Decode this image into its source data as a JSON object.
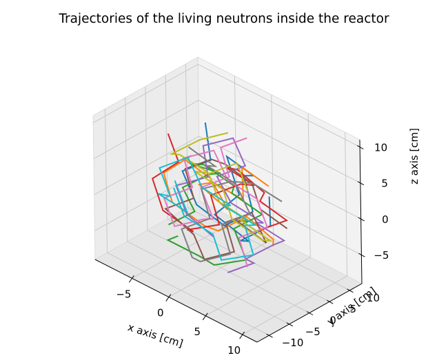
{
  "chart_data": {
    "type": "line",
    "projection": "3d",
    "title": "Trajectories of the living neutrons inside the reactor",
    "xlabel": "x axis [cm]",
    "ylabel": "y axis [cm]",
    "zlabel": "z axis [cm]",
    "xlim": [
      -10,
      12
    ],
    "ylim": [
      -13,
      13
    ],
    "zlim": [
      -9,
      11
    ],
    "xticks": [
      -5,
      0,
      5,
      10
    ],
    "yticks": [
      -10,
      -5,
      0,
      5,
      10
    ],
    "zticks": [
      -5,
      0,
      5,
      10
    ],
    "xtick_labels": [
      "−5",
      "0",
      "5",
      "10"
    ],
    "ytick_labels": [
      "−10",
      "−5",
      "0",
      "5",
      "10"
    ],
    "ztick_labels": [
      "−5",
      "0",
      "5",
      "10"
    ],
    "grid": true,
    "legend": "none",
    "pane_colors": [
      "#f2f2f2",
      "#ececec",
      "#e6e6e6"
    ],
    "series_colors": [
      "#1f77b4",
      "#ff7f0e",
      "#2ca02c",
      "#d62728",
      "#9467bd",
      "#8c564b",
      "#e377c2",
      "#7f7f7f",
      "#bcbd22",
      "#17becf"
    ],
    "series": [
      {
        "color": "#1f77b4",
        "points": [
          [
            -3.0,
            2.0,
            9.0
          ],
          [
            -1.5,
            0.5,
            5.0
          ],
          [
            -4.0,
            -2.0,
            3.0
          ],
          [
            -1.0,
            -4.0,
            0.5
          ],
          [
            1.5,
            -1.5,
            -2.0
          ],
          [
            -0.5,
            2.0,
            -4.0
          ],
          [
            2.5,
            3.5,
            -1.0
          ],
          [
            0.5,
            5.0,
            2.5
          ],
          [
            3.5,
            2.0,
            5.0
          ],
          [
            1.0,
            0.0,
            7.0
          ],
          [
            4.0,
            -2.5,
            4.0
          ],
          [
            2.0,
            -5.0,
            1.0
          ],
          [
            5.5,
            -3.0,
            -1.5
          ],
          [
            3.0,
            -0.5,
            -3.5
          ],
          [
            6.0,
            1.5,
            -0.5
          ],
          [
            4.5,
            4.0,
            2.0
          ]
        ]
      },
      {
        "color": "#ff7f0e",
        "points": [
          [
            5.0,
            3.0,
            4.0
          ],
          [
            2.5,
            1.0,
            6.0
          ],
          [
            4.0,
            -1.5,
            3.0
          ],
          [
            1.0,
            -3.5,
            4.5
          ],
          [
            -2.0,
            -1.5,
            2.0
          ],
          [
            0.5,
            1.0,
            -1.0
          ],
          [
            -3.0,
            3.0,
            1.0
          ],
          [
            -5.5,
            1.0,
            3.0
          ],
          [
            -3.0,
            -1.5,
            5.5
          ],
          [
            -6.0,
            -3.0,
            2.0
          ],
          [
            -3.5,
            -5.5,
            0.0
          ],
          [
            -0.5,
            -3.0,
            -2.5
          ],
          [
            2.5,
            -5.0,
            -1.0
          ],
          [
            5.0,
            -2.5,
            1.5
          ],
          [
            7.5,
            -0.5,
            -1.0
          ],
          [
            6.0,
            2.0,
            -3.5
          ]
        ]
      },
      {
        "color": "#2ca02c",
        "points": [
          [
            -6.0,
            -2.0,
            -5.5
          ],
          [
            -3.5,
            0.0,
            -3.0
          ],
          [
            -6.5,
            2.5,
            -2.0
          ],
          [
            -4.0,
            4.5,
            0.5
          ],
          [
            -1.0,
            2.0,
            3.0
          ],
          [
            -3.5,
            -1.0,
            4.0
          ],
          [
            -0.5,
            -3.0,
            6.0
          ],
          [
            2.5,
            -1.0,
            4.0
          ],
          [
            0.5,
            2.0,
            1.0
          ],
          [
            3.5,
            4.0,
            -1.0
          ],
          [
            1.0,
            1.5,
            -3.5
          ],
          [
            4.0,
            -1.0,
            -5.5
          ],
          [
            1.0,
            -3.5,
            -7.0
          ],
          [
            -2.0,
            -1.5,
            -8.0
          ],
          [
            -5.0,
            -4.0,
            -6.5
          ],
          [
            -2.5,
            -6.0,
            -4.0
          ]
        ]
      },
      {
        "color": "#d62728",
        "points": [
          [
            -7.0,
            0.0,
            6.0
          ],
          [
            -4.5,
            -2.0,
            4.0
          ],
          [
            -7.0,
            -4.0,
            1.0
          ],
          [
            -4.5,
            -6.0,
            -1.5
          ],
          [
            -1.5,
            -4.0,
            -3.5
          ],
          [
            -4.0,
            -1.0,
            -5.5
          ],
          [
            -1.0,
            1.5,
            -4.0
          ],
          [
            -3.5,
            4.0,
            -2.0
          ],
          [
            -0.5,
            6.0,
            0.5
          ],
          [
            2.5,
            4.0,
            2.5
          ],
          [
            0.0,
            1.5,
            4.5
          ],
          [
            3.0,
            -1.0,
            6.5
          ],
          [
            5.5,
            1.0,
            4.0
          ],
          [
            3.5,
            3.5,
            1.0
          ],
          [
            6.0,
            5.5,
            -1.0
          ],
          [
            3.5,
            3.5,
            -3.0
          ]
        ]
      },
      {
        "color": "#9467bd",
        "points": [
          [
            2.0,
            -2.0,
            -8.0
          ],
          [
            4.5,
            0.0,
            -6.0
          ],
          [
            2.0,
            2.5,
            -7.5
          ],
          [
            4.5,
            5.0,
            -5.0
          ],
          [
            7.0,
            3.0,
            -2.5
          ],
          [
            4.5,
            0.5,
            -0.5
          ],
          [
            7.0,
            -2.0,
            1.5
          ],
          [
            4.0,
            -4.5,
            3.5
          ],
          [
            1.0,
            -2.5,
            5.0
          ],
          [
            3.5,
            0.0,
            7.0
          ],
          [
            0.5,
            2.5,
            8.5
          ],
          [
            -2.5,
            0.5,
            6.5
          ],
          [
            -0.5,
            -2.0,
            4.0
          ],
          [
            -3.5,
            -4.5,
            2.0
          ],
          [
            -1.0,
            -6.5,
            0.0
          ],
          [
            1.5,
            -4.5,
            -2.5
          ]
        ]
      },
      {
        "color": "#8c564b",
        "points": [
          [
            8.0,
            2.0,
            0.0
          ],
          [
            5.5,
            0.0,
            2.0
          ],
          [
            3.0,
            2.5,
            3.5
          ],
          [
            0.5,
            0.5,
            5.5
          ],
          [
            -2.5,
            2.5,
            4.0
          ],
          [
            -5.0,
            0.5,
            2.0
          ],
          [
            -2.5,
            -2.0,
            0.0
          ],
          [
            -5.0,
            -4.5,
            -2.0
          ],
          [
            -2.0,
            -3.0,
            -4.5
          ],
          [
            0.5,
            -5.0,
            -6.0
          ],
          [
            3.5,
            -3.0,
            -4.0
          ],
          [
            1.0,
            -0.5,
            -2.0
          ],
          [
            3.5,
            1.5,
            0.0
          ],
          [
            6.5,
            -0.5,
            -2.0
          ],
          [
            4.0,
            -3.0,
            0.5
          ],
          [
            6.5,
            -5.0,
            2.5
          ]
        ]
      },
      {
        "color": "#e377c2",
        "points": [
          [
            1.0,
            5.0,
            8.0
          ],
          [
            -1.5,
            3.0,
            6.0
          ],
          [
            1.0,
            0.5,
            4.0
          ],
          [
            -1.5,
            -2.0,
            2.0
          ],
          [
            1.5,
            -4.5,
            0.0
          ],
          [
            -1.0,
            -2.5,
            -2.0
          ],
          [
            -3.5,
            -5.0,
            -3.5
          ],
          [
            -6.0,
            -3.0,
            -1.5
          ],
          [
            -3.5,
            -0.5,
            0.5
          ],
          [
            -6.0,
            2.0,
            2.5
          ],
          [
            -3.0,
            4.0,
            4.5
          ],
          [
            0.0,
            2.0,
            2.5
          ],
          [
            2.5,
            4.5,
            0.5
          ],
          [
            5.0,
            2.5,
            -1.5
          ],
          [
            2.5,
            0.0,
            -3.5
          ],
          [
            5.0,
            -2.5,
            -5.5
          ]
        ]
      },
      {
        "color": "#7f7f7f",
        "points": [
          [
            -2.0,
            -4.0,
            8.0
          ],
          [
            0.5,
            -2.0,
            6.0
          ],
          [
            -2.0,
            0.5,
            4.0
          ],
          [
            0.5,
            3.0,
            2.0
          ],
          [
            3.5,
            1.0,
            0.0
          ],
          [
            1.0,
            -1.5,
            -2.0
          ],
          [
            3.5,
            -4.0,
            -4.0
          ],
          [
            0.5,
            -6.0,
            -6.0
          ],
          [
            -2.0,
            -3.5,
            -7.5
          ],
          [
            -4.5,
            -1.5,
            -5.5
          ],
          [
            -2.0,
            1.0,
            -3.5
          ],
          [
            -4.5,
            3.5,
            -1.5
          ],
          [
            -1.5,
            5.5,
            0.5
          ],
          [
            1.0,
            3.0,
            2.5
          ],
          [
            4.0,
            1.0,
            4.5
          ],
          [
            6.5,
            3.5,
            2.5
          ]
        ]
      },
      {
        "color": "#bcbd22",
        "points": [
          [
            6.0,
            -4.0,
            6.0
          ],
          [
            3.5,
            -2.0,
            8.0
          ],
          [
            1.0,
            -4.5,
            6.0
          ],
          [
            3.5,
            -6.5,
            4.0
          ],
          [
            6.0,
            -4.0,
            2.0
          ],
          [
            3.5,
            -1.5,
            0.0
          ],
          [
            6.5,
            0.5,
            -2.0
          ],
          [
            4.0,
            3.0,
            -4.0
          ],
          [
            1.0,
            1.0,
            -2.0
          ],
          [
            -1.5,
            3.5,
            0.0
          ],
          [
            -4.0,
            1.0,
            2.0
          ],
          [
            -1.0,
            -1.0,
            4.0
          ],
          [
            -3.5,
            -3.5,
            6.0
          ],
          [
            -6.0,
            -1.0,
            4.0
          ],
          [
            -3.5,
            1.5,
            6.5
          ],
          [
            -1.0,
            4.0,
            8.0
          ]
        ]
      },
      {
        "color": "#17becf",
        "points": [
          [
            -8.0,
            3.0,
            -3.0
          ],
          [
            -5.5,
            1.0,
            -5.0
          ],
          [
            -3.0,
            3.5,
            -7.0
          ],
          [
            -0.5,
            1.0,
            -8.5
          ],
          [
            2.5,
            3.5,
            -7.0
          ],
          [
            0.0,
            6.0,
            -5.0
          ],
          [
            2.5,
            4.0,
            -3.0
          ],
          [
            -0.5,
            1.5,
            -1.0
          ],
          [
            2.0,
            -1.0,
            1.0
          ],
          [
            -0.5,
            -3.5,
            3.0
          ],
          [
            -3.5,
            -1.5,
            5.0
          ],
          [
            -6.0,
            -4.0,
            3.0
          ],
          [
            -3.5,
            -6.0,
            1.0
          ],
          [
            -6.5,
            -3.5,
            -1.0
          ],
          [
            -4.0,
            -1.0,
            -3.0
          ],
          [
            -7.0,
            1.5,
            -1.0
          ]
        ]
      }
    ]
  }
}
